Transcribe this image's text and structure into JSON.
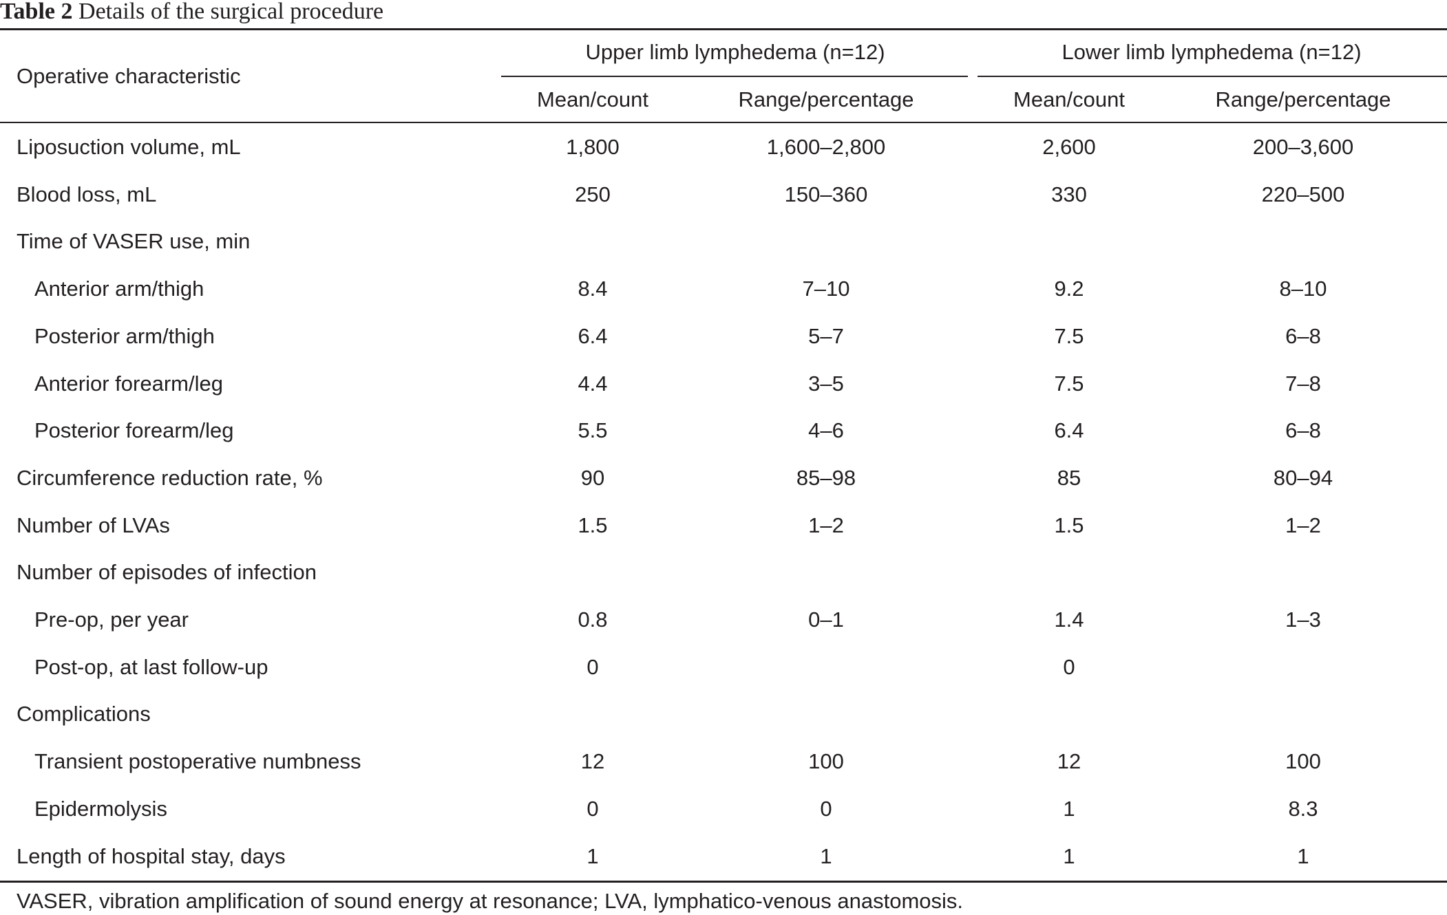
{
  "caption": {
    "label": "Table 2",
    "title": "Details of the surgical procedure"
  },
  "header": {
    "row_header": "Operative characteristic",
    "groups": [
      {
        "label": "Upper limb lymphedema (n=12)"
      },
      {
        "label": "Lower limb lymphedema (n=12)"
      }
    ],
    "subcolumns": [
      "Mean/count",
      "Range/percentage",
      "Mean/count",
      "Range/percentage"
    ]
  },
  "rows": [
    {
      "label": "Liposuction volume, mL",
      "indent": false,
      "values": [
        "1,800",
        "1,600–2,800",
        "2,600",
        "200–3,600"
      ]
    },
    {
      "label": "Blood loss, mL",
      "indent": false,
      "values": [
        "250",
        "150–360",
        "330",
        "220–500"
      ]
    },
    {
      "label": "Time of VASER use, min",
      "indent": false,
      "values": [
        "",
        "",
        "",
        ""
      ]
    },
    {
      "label": "Anterior arm/thigh",
      "indent": true,
      "values": [
        "8.4",
        "7–10",
        "9.2",
        "8–10"
      ]
    },
    {
      "label": "Posterior arm/thigh",
      "indent": true,
      "values": [
        "6.4",
        "5–7",
        "7.5",
        "6–8"
      ]
    },
    {
      "label": "Anterior forearm/leg",
      "indent": true,
      "values": [
        "4.4",
        "3–5",
        "7.5",
        "7–8"
      ]
    },
    {
      "label": "Posterior forearm/leg",
      "indent": true,
      "values": [
        "5.5",
        "4–6",
        "6.4",
        "6–8"
      ]
    },
    {
      "label": "Circumference reduction rate, %",
      "indent": false,
      "values": [
        "90",
        "85–98",
        "85",
        "80–94"
      ]
    },
    {
      "label": "Number of LVAs",
      "indent": false,
      "values": [
        "1.5",
        "1–2",
        "1.5",
        "1–2"
      ]
    },
    {
      "label": "Number of episodes of infection",
      "indent": false,
      "values": [
        "",
        "",
        "",
        ""
      ]
    },
    {
      "label": "Pre-op, per year",
      "indent": true,
      "values": [
        "0.8",
        "0–1",
        "1.4",
        "1–3"
      ]
    },
    {
      "label": "Post-op, at last follow-up",
      "indent": true,
      "values": [
        "0",
        "",
        "0",
        ""
      ]
    },
    {
      "label": "Complications",
      "indent": false,
      "values": [
        "",
        "",
        "",
        ""
      ]
    },
    {
      "label": "Transient postoperative numbness",
      "indent": true,
      "values": [
        "12",
        "100",
        "12",
        "100"
      ]
    },
    {
      "label": "Epidermolysis",
      "indent": true,
      "values": [
        "0",
        "0",
        "1",
        "8.3"
      ]
    },
    {
      "label": "Length of hospital stay, days",
      "indent": false,
      "values": [
        "1",
        "1",
        "1",
        "1"
      ]
    }
  ],
  "footnote": "VASER, vibration amplification of sound energy at resonance; LVA, lymphatico-venous anastomosis."
}
